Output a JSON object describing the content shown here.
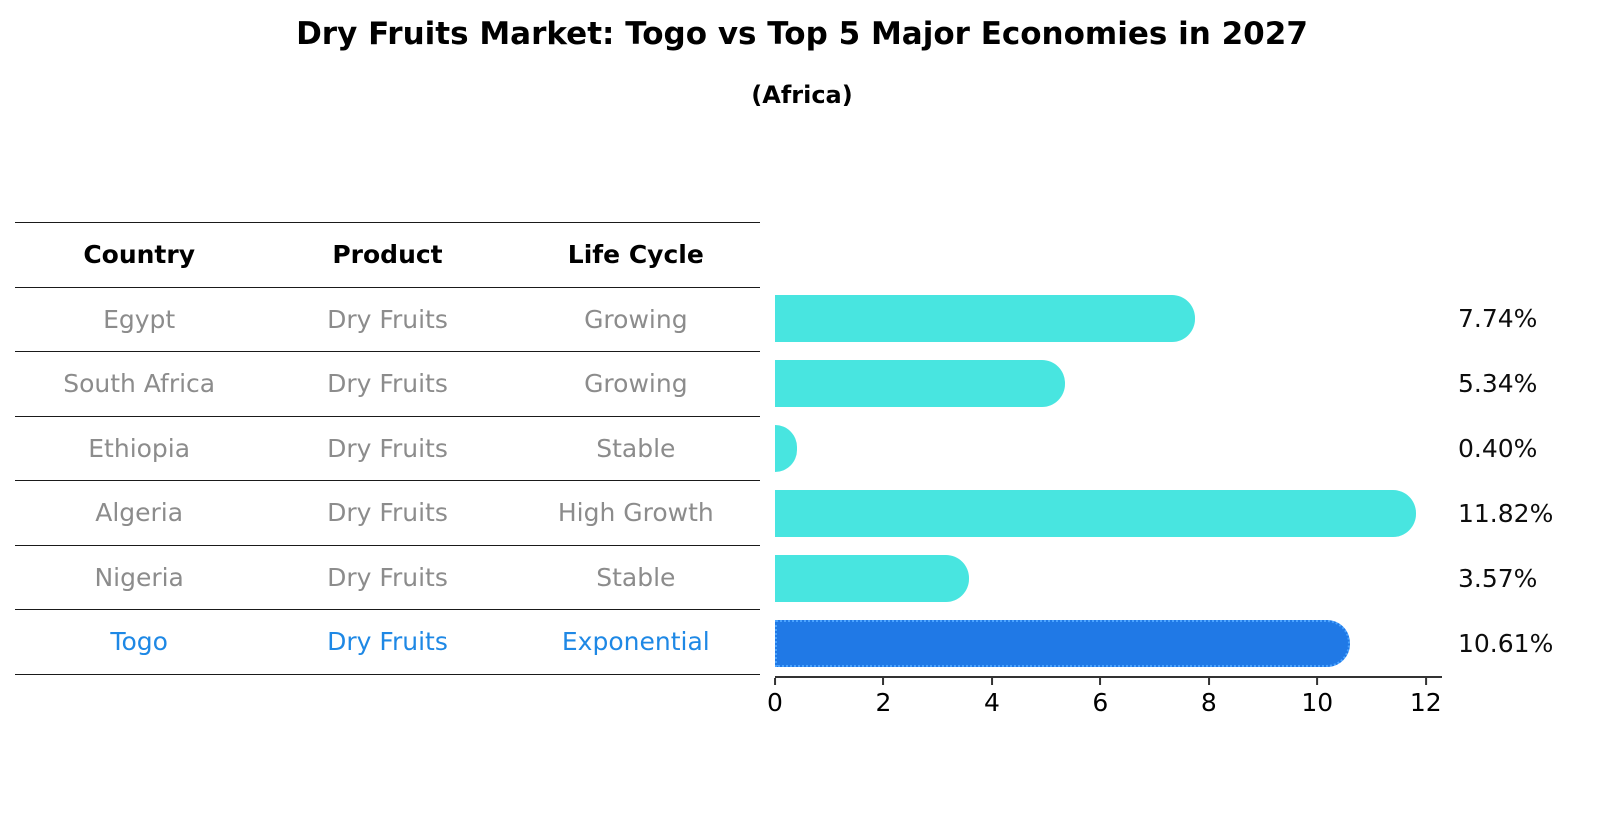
{
  "title": "Dry Fruits Market: Togo vs Top 5 Major Economies in 2027",
  "subtitle": "(Africa)",
  "table": {
    "headers": {
      "country": "Country",
      "product": "Product",
      "life_cycle": "Life Cycle"
    },
    "rows": [
      {
        "country": "Egypt",
        "product": "Dry Fruits",
        "life_cycle": "Growing"
      },
      {
        "country": "South Africa",
        "product": "Dry Fruits",
        "life_cycle": "Growing"
      },
      {
        "country": "Ethiopia",
        "product": "Dry Fruits",
        "life_cycle": "Stable"
      },
      {
        "country": "Algeria",
        "product": "Dry Fruits",
        "life_cycle": "High Growth"
      },
      {
        "country": "Nigeria",
        "product": "Dry Fruits",
        "life_cycle": "Stable"
      },
      {
        "country": "Togo",
        "product": "Dry Fruits",
        "life_cycle": "Exponential"
      }
    ]
  },
  "chart_data": {
    "type": "bar",
    "orientation": "horizontal",
    "title": "Dry Fruits Market: Togo vs Top 5 Major Economies in 2027",
    "subtitle": "(Africa)",
    "categories": [
      "Egypt",
      "South Africa",
      "Ethiopia",
      "Algeria",
      "Nigeria",
      "Togo"
    ],
    "values": [
      7.74,
      5.34,
      0.4,
      11.82,
      3.57,
      10.61
    ],
    "value_labels": [
      "7.74%",
      "5.34%",
      "0.40%",
      "11.82%",
      "3.57%",
      "10.61%"
    ],
    "highlight_index": 5,
    "xticks": [
      0,
      2,
      4,
      6,
      8,
      10,
      12
    ],
    "xlim": [
      0,
      12.3
    ],
    "grid": false,
    "legend": "none",
    "bar_color": "#48e5e0",
    "highlight_color": "#2079e6"
  },
  "colors": {
    "muted_text": "#8c8c8c",
    "highlight_text": "#1e88e5",
    "axis": "#333333",
    "background": "#ffffff"
  }
}
